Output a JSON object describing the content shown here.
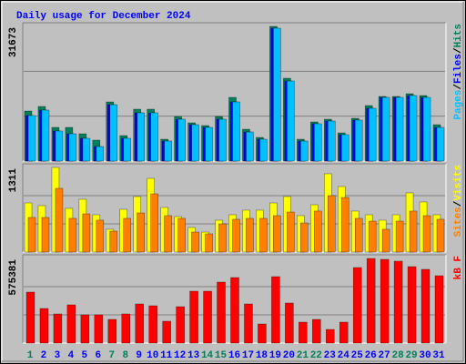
{
  "chart_data": {
    "type": "bar",
    "title": "Daily usage for December 2024",
    "categories": [
      "1",
      "2",
      "3",
      "4",
      "5",
      "6",
      "7",
      "8",
      "9",
      "10",
      "11",
      "12",
      "13",
      "14",
      "15",
      "16",
      "17",
      "18",
      "19",
      "20",
      "21",
      "22",
      "23",
      "24",
      "25",
      "26",
      "27",
      "28",
      "29",
      "30",
      "31"
    ],
    "category_colors": [
      "#00805c",
      "#0000ff",
      "#0000ff",
      "#0000ff",
      "#0000ff",
      "#0000ff",
      "#00805c",
      "#00805c",
      "#0000ff",
      "#0000ff",
      "#0000ff",
      "#0000ff",
      "#0000ff",
      "#00805c",
      "#00805c",
      "#0000ff",
      "#0000ff",
      "#0000ff",
      "#0000ff",
      "#0000ff",
      "#00805c",
      "#00805c",
      "#0000ff",
      "#0000ff",
      "#0000ff",
      "#0000ff",
      "#0000ff",
      "#00805c",
      "#00805c",
      "#0000ff",
      "#0000ff"
    ],
    "separator": "/",
    "panels": [
      {
        "ylim": [
          0,
          31673
        ],
        "yticks": [
          31673
        ],
        "series": [
          {
            "name": "Hits",
            "color": "#00805c",
            "values": [
              11770,
              12840,
              7918,
              7918,
              6420,
              4922,
              13910,
              5992,
              12198,
              12198,
              5136,
              10486,
              8988,
              8346,
              10486,
              14980,
              7490,
              5564,
              31673,
              19474,
              5136,
              9202,
              9844,
              6634,
              10058,
              13054,
              15194,
              15194,
              15836,
              15408,
              8560
            ]
          },
          {
            "name": "Files",
            "color": "#0000ff",
            "values": [
              10700,
              11984,
              7062,
              6420,
              5350,
              3424,
              13268,
              5350,
              11342,
              11342,
              4708,
              9844,
              8560,
              7918,
              9844,
              13910,
              6848,
              5136,
              31245,
              18832,
              4708,
              8774,
              9416,
              6206,
              9630,
              12412,
              14980,
              14980,
              15408,
              14980,
              7918
            ]
          },
          {
            "name": "Pages",
            "color": "#00c0ff",
            "values": [
              10700,
              11984,
              7062,
              6420,
              5350,
              3424,
              13268,
              5350,
              11342,
              11342,
              4708,
              9844,
              8560,
              7918,
              9844,
              13910,
              6848,
              5136,
              31245,
              18832,
              4708,
              8774,
              9416,
              6206,
              9630,
              12412,
              14980,
              14980,
              15408,
              14980,
              7918
            ]
          }
        ]
      },
      {
        "ylim": [
          0,
          1311
        ],
        "yticks": [
          1311
        ],
        "series": [
          {
            "name": "Visits",
            "color": "#ffff00",
            "values": [
              761,
              719,
              1311,
              677,
              818,
              578,
              353,
              663,
              860,
              1142,
              691,
              550,
              381,
              310,
              494,
              578,
              649,
              649,
              761,
              860,
              564,
              733,
              1213,
              1015,
              635,
              578,
              494,
              578,
              917,
              776,
              578
            ]
          },
          {
            "name": "Sites",
            "color": "#ff8000",
            "values": [
              536,
              536,
              987,
              522,
              592,
              494,
              324,
              522,
              606,
              902,
              564,
              522,
              310,
              282,
              437,
              508,
              522,
              522,
              564,
              620,
              451,
              635,
              874,
              846,
              522,
              479,
              353,
              479,
              635,
              564,
              508
            ]
          }
        ]
      },
      {
        "ylim": [
          0,
          575381
        ],
        "yticks": [
          575381
        ],
        "series": [
          {
            "name": "kB F",
            "color": "#ff0000",
            "values": [
              346472,
              235106,
              197984,
              259854,
              191797,
              191797,
              160862,
              197984,
              266041,
              253667,
              148488,
              247480,
              352659,
              352659,
              414529,
              445464,
              266041,
              129927,
              451651,
              272228,
              142301,
              160862,
              92805,
              142301,
              513521,
              575381,
              569194,
              556830,
              519708,
              501147,
              457838
            ]
          }
        ]
      }
    ]
  }
}
